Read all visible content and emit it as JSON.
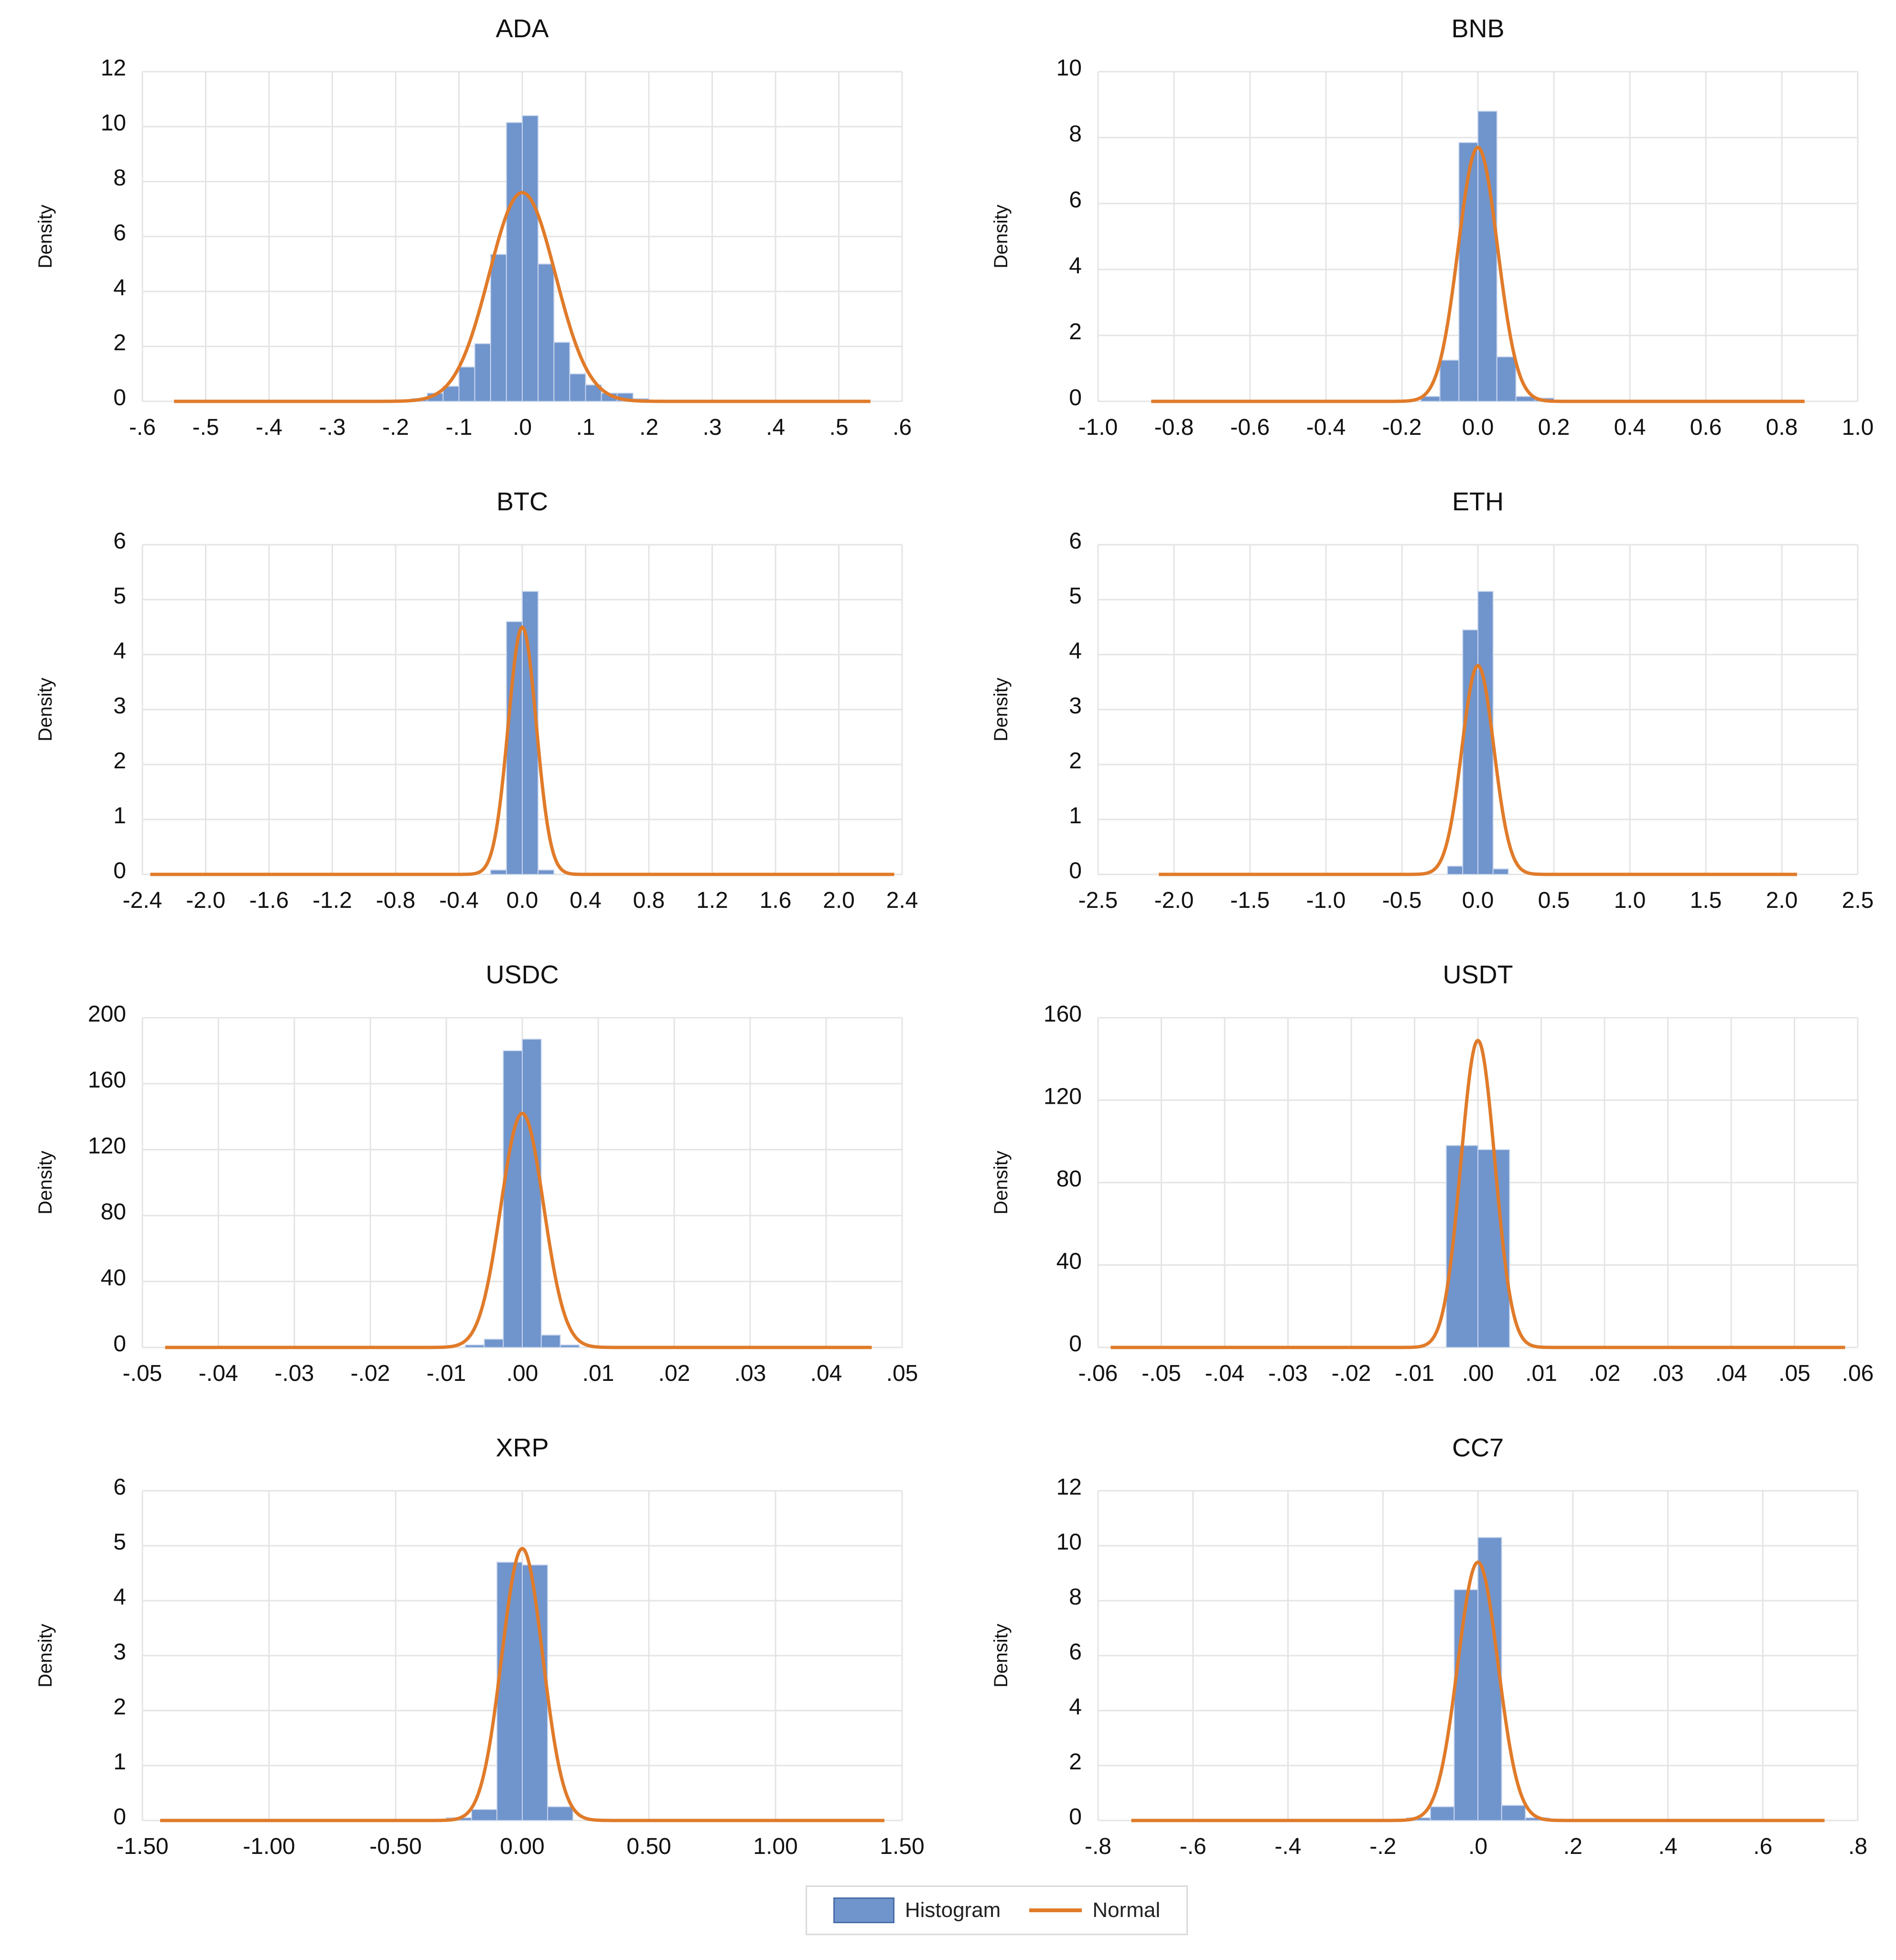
{
  "figure": {
    "legend": {
      "histogram_label": "Histogram",
      "normal_label": "Normal"
    },
    "colors": {
      "histogram_fill": "#7094cc",
      "histogram_edge": "#c8d6ee",
      "normal_line": "#e07b2a",
      "grid": "#e4e4e4",
      "text": "#111111"
    },
    "ylabel": "Density"
  },
  "chart_data": [
    {
      "type": "bar",
      "title": "ADA",
      "ylabel": "Density",
      "xlim": [
        -0.6,
        0.6
      ],
      "ylim": [
        0,
        12
      ],
      "xticks": [
        -0.6,
        -0.5,
        -0.4,
        -0.3,
        -0.2,
        -0.1,
        0,
        0.1,
        0.2,
        0.3,
        0.4,
        0.5,
        0.6
      ],
      "xtick_labels": [
        "-.6",
        "-.5",
        "-.4",
        "-.3",
        "-.2",
        "-.1",
        ".0",
        ".1",
        ".2",
        ".3",
        ".4",
        ".5",
        ".6"
      ],
      "yticks": [
        0,
        2,
        4,
        6,
        8,
        10,
        12
      ],
      "ytick_labels": [
        "0",
        "2",
        "4",
        "6",
        "8",
        "10",
        "12"
      ],
      "histogram": {
        "bin_width": 0.025,
        "bins": [
          -0.2,
          -0.175,
          -0.15,
          -0.125,
          -0.1,
          -0.075,
          -0.05,
          -0.025,
          0,
          0.025,
          0.05,
          0.075,
          0.1,
          0.125,
          0.15,
          0.175
        ],
        "values": [
          0.05,
          0.1,
          0.3,
          0.55,
          1.25,
          2.1,
          5.35,
          10.15,
          10.4,
          5.0,
          2.15,
          1.0,
          0.6,
          0.3,
          0.3,
          0.1
        ]
      },
      "normal": {
        "mean": 0.0,
        "peak": 7.6,
        "range": [
          -0.55,
          0.55
        ]
      }
    },
    {
      "type": "bar",
      "title": "BNB",
      "ylabel": "Density",
      "xlim": [
        -1.0,
        1.0
      ],
      "ylim": [
        0,
        10
      ],
      "xticks": [
        -1.0,
        -0.8,
        -0.6,
        -0.4,
        -0.2,
        0,
        0.2,
        0.4,
        0.6,
        0.8,
        1.0
      ],
      "xtick_labels": [
        "-1.0",
        "-0.8",
        "-0.6",
        "-0.4",
        "-0.2",
        "0.0",
        "0.2",
        "0.4",
        "0.6",
        "0.8",
        "1.0"
      ],
      "yticks": [
        0,
        2,
        4,
        6,
        8,
        10
      ],
      "ytick_labels": [
        "0",
        "2",
        "4",
        "6",
        "8",
        "10"
      ],
      "histogram": {
        "bin_width": 0.05,
        "bins": [
          -0.15,
          -0.1,
          -0.05,
          0,
          0.05,
          0.1,
          0.15
        ],
        "values": [
          0.15,
          1.25,
          7.85,
          8.8,
          1.35,
          0.15,
          0.1
        ]
      },
      "normal": {
        "mean": 0.0,
        "peak": 7.7,
        "range": [
          -0.86,
          0.86
        ]
      }
    },
    {
      "type": "bar",
      "title": "BTC",
      "ylabel": "Density",
      "xlim": [
        -2.4,
        2.4
      ],
      "ylim": [
        0,
        6
      ],
      "xticks": [
        -2.4,
        -2.0,
        -1.6,
        -1.2,
        -0.8,
        -0.4,
        0,
        0.4,
        0.8,
        1.2,
        1.6,
        2.0,
        2.4
      ],
      "xtick_labels": [
        "-2.4",
        "-2.0",
        "-1.6",
        "-1.2",
        "-0.8",
        "-0.4",
        "0.0",
        "0.4",
        "0.8",
        "1.2",
        "1.6",
        "2.0",
        "2.4"
      ],
      "yticks": [
        0,
        1,
        2,
        3,
        4,
        5,
        6
      ],
      "ytick_labels": [
        "0",
        "1",
        "2",
        "3",
        "4",
        "5",
        "6"
      ],
      "histogram": {
        "bin_width": 0.1,
        "bins": [
          -0.2,
          -0.1,
          0,
          0.1
        ],
        "values": [
          0.08,
          4.6,
          5.15,
          0.08
        ]
      },
      "normal": {
        "mean": 0.0,
        "peak": 4.5,
        "range": [
          -2.35,
          2.35
        ]
      }
    },
    {
      "type": "bar",
      "title": "ETH",
      "ylabel": "Density",
      "xlim": [
        -2.5,
        2.5
      ],
      "ylim": [
        0,
        6
      ],
      "xticks": [
        -2.5,
        -2.0,
        -1.5,
        -1.0,
        -0.5,
        0,
        0.5,
        1.0,
        1.5,
        2.0,
        2.5
      ],
      "xtick_labels": [
        "-2.5",
        "-2.0",
        "-1.5",
        "-1.0",
        "-0.5",
        "0.0",
        "0.5",
        "1.0",
        "1.5",
        "2.0",
        "2.5"
      ],
      "yticks": [
        0,
        1,
        2,
        3,
        4,
        5,
        6
      ],
      "ytick_labels": [
        "0",
        "1",
        "2",
        "3",
        "4",
        "5",
        "6"
      ],
      "histogram": {
        "bin_width": 0.1,
        "bins": [
          -0.2,
          -0.1,
          0,
          0.1
        ],
        "values": [
          0.15,
          4.45,
          5.15,
          0.1
        ]
      },
      "normal": {
        "mean": 0.0,
        "peak": 3.8,
        "range": [
          -2.1,
          2.1
        ]
      }
    },
    {
      "type": "bar",
      "title": "USDC",
      "ylabel": "Density",
      "xlim": [
        -0.05,
        0.05
      ],
      "ylim": [
        0,
        200
      ],
      "xticks": [
        -0.05,
        -0.04,
        -0.03,
        -0.02,
        -0.01,
        0,
        0.01,
        0.02,
        0.03,
        0.04,
        0.05
      ],
      "xtick_labels": [
        "-.05",
        "-.04",
        "-.03",
        "-.02",
        "-.01",
        ".00",
        ".01",
        ".02",
        ".03",
        ".04",
        ".05"
      ],
      "yticks": [
        0,
        40,
        80,
        120,
        160,
        200
      ],
      "ytick_labels": [
        "0",
        "40",
        "80",
        "120",
        "160",
        "200"
      ],
      "histogram": {
        "bin_width": 0.0025,
        "bins": [
          -0.0075,
          -0.005,
          -0.0025,
          0,
          0.0025,
          0.005
        ],
        "values": [
          1.5,
          5.0,
          180.0,
          187.0,
          7.5,
          1.5
        ]
      },
      "normal": {
        "mean": 0.0,
        "peak": 142.0,
        "range": [
          -0.047,
          0.046
        ]
      }
    },
    {
      "type": "bar",
      "title": "USDT",
      "ylabel": "Density",
      "xlim": [
        -0.06,
        0.06
      ],
      "ylim": [
        0,
        160
      ],
      "xticks": [
        -0.06,
        -0.05,
        -0.04,
        -0.03,
        -0.02,
        -0.01,
        0,
        0.01,
        0.02,
        0.03,
        0.04,
        0.05,
        0.06
      ],
      "xtick_labels": [
        "-.06",
        "-.05",
        "-.04",
        "-.03",
        "-.02",
        "-.01",
        ".00",
        ".01",
        ".02",
        ".03",
        ".04",
        ".05",
        ".06"
      ],
      "yticks": [
        0,
        40,
        80,
        120,
        160
      ],
      "ytick_labels": [
        "0",
        "40",
        "80",
        "120",
        "160"
      ],
      "histogram": {
        "bin_width": 0.005,
        "bins": [
          -0.005,
          0
        ],
        "values": [
          98.0,
          96.0
        ]
      },
      "normal": {
        "mean": 0.0,
        "peak": 149.0,
        "range": [
          -0.058,
          0.058
        ]
      }
    },
    {
      "type": "bar",
      "title": "XRP",
      "ylabel": "Density",
      "xlim": [
        -1.5,
        1.5
      ],
      "ylim": [
        0,
        6
      ],
      "xticks": [
        -1.5,
        -1.0,
        -0.5,
        0,
        0.5,
        1.0,
        1.5
      ],
      "xtick_labels": [
        "-1.50",
        "-1.00",
        "-0.50",
        "0.00",
        "0.50",
        "1.00",
        "1.50"
      ],
      "yticks": [
        0,
        1,
        2,
        3,
        4,
        5,
        6
      ],
      "ytick_labels": [
        "0",
        "1",
        "2",
        "3",
        "4",
        "5",
        "6"
      ],
      "histogram": {
        "bin_width": 0.1,
        "bins": [
          -0.3,
          -0.2,
          -0.1,
          0,
          0.1
        ],
        "values": [
          0.05,
          0.2,
          4.7,
          4.65,
          0.25
        ]
      },
      "normal": {
        "mean": 0.0,
        "peak": 4.95,
        "range": [
          -1.43,
          1.43
        ]
      }
    },
    {
      "type": "bar",
      "title": "CC7",
      "ylabel": "Density",
      "xlim": [
        -0.8,
        0.8
      ],
      "ylim": [
        0,
        12
      ],
      "xticks": [
        -0.8,
        -0.6,
        -0.4,
        -0.2,
        0,
        0.2,
        0.4,
        0.6,
        0.8
      ],
      "xtick_labels": [
        "-.8",
        "-.6",
        "-.4",
        "-.2",
        ".0",
        ".2",
        ".4",
        ".6",
        ".8"
      ],
      "yticks": [
        0,
        2,
        4,
        6,
        8,
        10,
        12
      ],
      "ytick_labels": [
        "0",
        "2",
        "4",
        "6",
        "8",
        "10",
        "12"
      ],
      "histogram": {
        "bin_width": 0.05,
        "bins": [
          -0.15,
          -0.1,
          -0.05,
          0,
          0.05,
          0.1
        ],
        "values": [
          0.1,
          0.5,
          8.4,
          10.3,
          0.55,
          0.1
        ]
      },
      "normal": {
        "mean": 0.0,
        "peak": 9.4,
        "range": [
          -0.73,
          0.73
        ]
      }
    }
  ]
}
